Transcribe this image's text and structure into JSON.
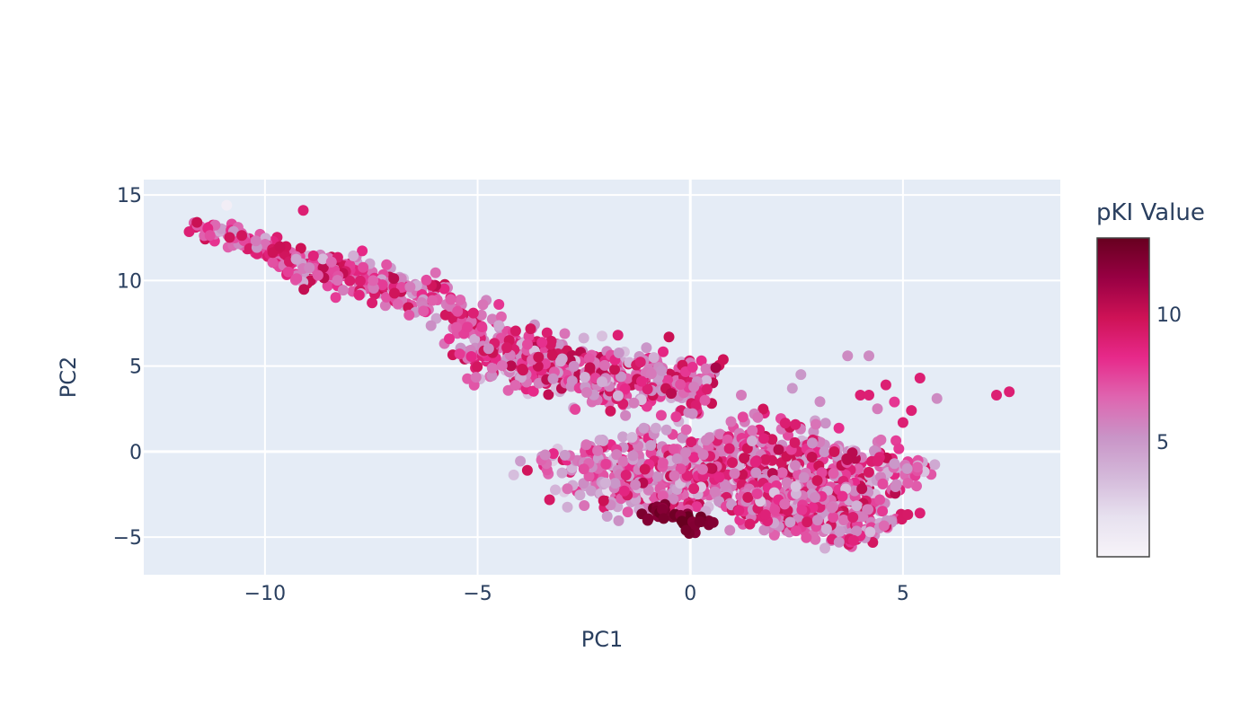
{
  "chart_data": {
    "type": "scatter",
    "title": "",
    "xlabel": "PC1",
    "ylabel": "PC2",
    "xlim": [
      -12.85,
      8.7
    ],
    "ylim": [
      -7.2,
      15.9
    ],
    "x_ticks": [
      -10,
      -5,
      0,
      5
    ],
    "x_tick_labels": [
      "−10",
      "−5",
      "0",
      "5"
    ],
    "y_ticks": [
      -5,
      0,
      5,
      10,
      15
    ],
    "y_tick_labels": [
      "−5",
      "0",
      "5",
      "10",
      "15"
    ],
    "grid": true,
    "plot_background": "#e5ecf6",
    "colorbar": {
      "title": "pKI Value",
      "range": [
        0.5,
        13
      ],
      "ticks": [
        5,
        10
      ],
      "tick_labels": [
        "5",
        "10"
      ],
      "colorscale": [
        "#f7f4f9",
        "#e7e1ef",
        "#d4b9da",
        "#c994c7",
        "#df65b0",
        "#e7298a",
        "#ce1256",
        "#980043",
        "#67001f"
      ]
    },
    "series": [
      {
        "regions": [
          {
            "x0": -11.5,
            "y0": 13.3,
            "x1": -9.0,
            "y1": 11.0,
            "width": 0.8,
            "count": 110,
            "pki": [
              4,
              10
            ]
          },
          {
            "x0": -9.0,
            "y0": 11.0,
            "x1": -6.0,
            "y1": 9.0,
            "width": 1.6,
            "count": 200,
            "pki": [
              3.5,
              10.5
            ]
          },
          {
            "x0": -6.0,
            "y0": 9.0,
            "x1": -4.8,
            "y1": 6.5,
            "width": 1.3,
            "count": 60,
            "pki": [
              4,
              10
            ]
          },
          {
            "x0": -4.8,
            "y0": 6.5,
            "x1": -2.5,
            "y1": 4.0,
            "width": 2.4,
            "count": 240,
            "pki": [
              3,
              10.5
            ]
          },
          {
            "x0": -2.5,
            "y0": 4.2,
            "x1": 0.5,
            "y1": 3.8,
            "width": 2.6,
            "count": 230,
            "pki": [
              3,
              10.5
            ]
          },
          {
            "x0": -2.5,
            "y0": 0.5,
            "x1": 0.0,
            "y1": -3.0,
            "width": 3.0,
            "count": 330,
            "pki": [
              2,
              10
            ]
          },
          {
            "x0": 0.0,
            "y0": 0.5,
            "x1": 4.5,
            "y1": -3.0,
            "width": 4.0,
            "count": 620,
            "pki": [
              3,
              10.5
            ]
          },
          {
            "x0": 1.0,
            "y0": -2.5,
            "x1": 4.5,
            "y1": -4.7,
            "width": 1.8,
            "count": 250,
            "pki": [
              3,
              10
            ]
          },
          {
            "x0": -1.0,
            "y0": -3.5,
            "x1": 0.5,
            "y1": -4.3,
            "width": 0.9,
            "count": 35,
            "pki": [
              11.5,
              12.8
            ]
          }
        ],
        "points": [
          {
            "x": 7.5,
            "y": 3.5,
            "pki": 9
          },
          {
            "x": 7.2,
            "y": 3.3,
            "pki": 9
          },
          {
            "x": 5.8,
            "y": 3.1,
            "pki": 5.5
          },
          {
            "x": 5.4,
            "y": 4.3,
            "pki": 9
          },
          {
            "x": 5.4,
            "y": -3.6,
            "pki": 9
          },
          {
            "x": 5.2,
            "y": 2.4,
            "pki": 9
          },
          {
            "x": 5.0,
            "y": 1.7,
            "pki": 9
          },
          {
            "x": 5.1,
            "y": -1.0,
            "pki": 5
          },
          {
            "x": 4.8,
            "y": -0.7,
            "pki": 5
          },
          {
            "x": 4.6,
            "y": 3.9,
            "pki": 9
          },
          {
            "x": 4.2,
            "y": 5.6,
            "pki": 5.5
          },
          {
            "x": 3.7,
            "y": 5.6,
            "pki": 5.5
          },
          {
            "x": 4.0,
            "y": 3.3,
            "pki": 9
          },
          {
            "x": 4.2,
            "y": 3.3,
            "pki": 9
          },
          {
            "x": 4.4,
            "y": 2.5,
            "pki": 6
          },
          {
            "x": 4.8,
            "y": 2.9,
            "pki": 8
          },
          {
            "x": 2.6,
            "y": 4.5,
            "pki": 5
          },
          {
            "x": 2.4,
            "y": 3.7,
            "pki": 5
          },
          {
            "x": 0.6,
            "y": 4.9,
            "pki": 11
          },
          {
            "x": -0.5,
            "y": 6.7,
            "pki": 10
          },
          {
            "x": -1.7,
            "y": 6.8,
            "pki": 9
          },
          {
            "x": -4.5,
            "y": 8.6,
            "pki": 8
          },
          {
            "x": -5.1,
            "y": 8.1,
            "pki": 9
          },
          {
            "x": -9.1,
            "y": 14.1,
            "pki": 9
          },
          {
            "x": -10.9,
            "y": 14.4,
            "pki": 1
          },
          {
            "x": -11.6,
            "y": 13.4,
            "pki": 10
          },
          {
            "x": -0.1,
            "y": -4.6,
            "pki": 12.5
          },
          {
            "x": 1.2,
            "y": 3.3,
            "pki": 6
          }
        ]
      }
    ]
  }
}
